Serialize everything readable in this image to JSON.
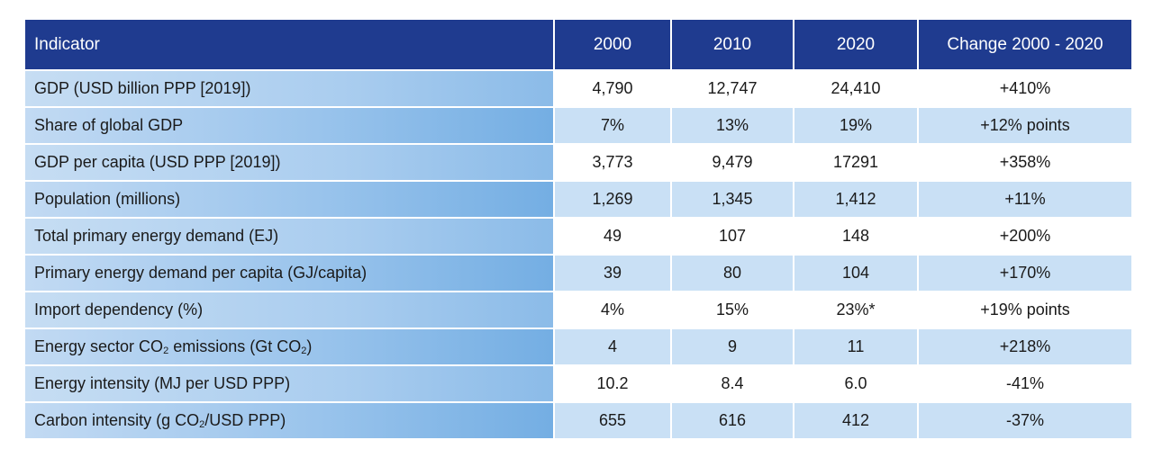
{
  "table": {
    "headers": [
      "Indicator",
      "2000",
      "2010",
      "2020",
      "Change 2000 - 2020"
    ],
    "rows": [
      {
        "indicator": "GDP (USD billion PPP [2019])",
        "y2000": "4,790",
        "y2010": "12,747",
        "y2020": "24,410",
        "change": "+410%"
      },
      {
        "indicator": "Share of global GDP",
        "y2000": "7%",
        "y2010": "13%",
        "y2020": "19%",
        "change": "+12% points"
      },
      {
        "indicator": "GDP per capita (USD PPP [2019])",
        "y2000": "3,773",
        "y2010": "9,479",
        "y2020": "17291",
        "change": "+358%"
      },
      {
        "indicator": "Population (millions)",
        "y2000": "1,269",
        "y2010": "1,345",
        "y2020": "1,412",
        "change": "+11%"
      },
      {
        "indicator": "Total primary energy demand (EJ)",
        "y2000": "49",
        "y2010": "107",
        "y2020": "148",
        "change": "+200%"
      },
      {
        "indicator": "Primary energy demand per capita (GJ/capita)",
        "y2000": "39",
        "y2010": "80",
        "y2020": "104",
        "change": "+170%"
      },
      {
        "indicator": "Import dependency (%)",
        "y2000": "4%",
        "y2010": "15%",
        "y2020": "23%*",
        "change": "+19% points"
      },
      {
        "indicator_pre": "Energy sector CO",
        "indicator_sub": "2",
        "indicator_post": " emissions (Gt CO",
        "indicator_sub2": "2",
        "indicator_end": ")",
        "y2000": "4",
        "y2010": "9",
        "y2020": "11",
        "change": "+218%"
      },
      {
        "indicator": "Energy intensity (MJ per USD PPP)",
        "y2000": "10.2",
        "y2010": "8.4",
        "y2020": "6.0",
        "change": "-41%"
      },
      {
        "indicator_pre": "Carbon intensity (g CO",
        "indicator_sub": "2",
        "indicator_post": "/USD PPP)",
        "y2000": "655",
        "y2010": "616",
        "y2020": "412",
        "change": "-37%"
      }
    ]
  }
}
